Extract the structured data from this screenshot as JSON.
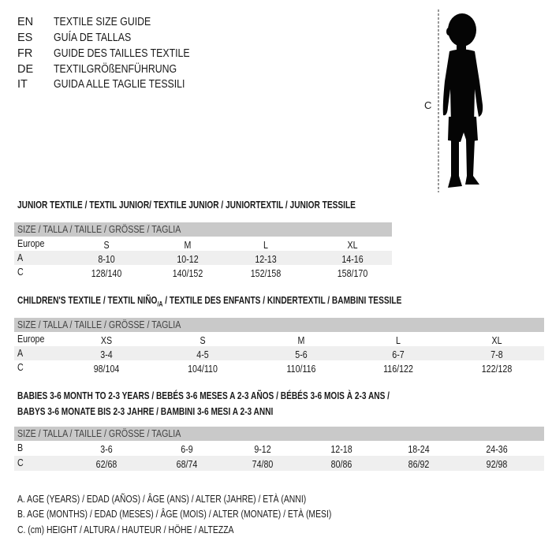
{
  "languages": [
    {
      "code": "EN",
      "name": "TEXTILE SIZE GUIDE"
    },
    {
      "code": "ES",
      "name": "GUÍA DE TALLAS"
    },
    {
      "code": "FR",
      "name": "GUIDE DES TAILLES TEXTILE"
    },
    {
      "code": "DE",
      "name": "TEXTILGRÖßENFÜHRUNG"
    },
    {
      "code": "IT",
      "name": "GUIDA ALLE TAGLIE TESSILI"
    }
  ],
  "figure": {
    "height_marker": "C",
    "icon": "child-silhouette"
  },
  "junior": {
    "title": "JUNIOR TEXTILE / TEXTIL JUNIOR/ TEXTILE JUNIOR / JUNIORTEXTIL / JUNIOR TESSILE",
    "header": "SIZE / TALLA / TAILLE / GRÖSSE / TAGLIA",
    "rows": [
      {
        "label": "Europe",
        "cells": [
          "S",
          "M",
          "L",
          "XL"
        ]
      },
      {
        "label": "A",
        "cells": [
          "8-10",
          "10-12",
          "12-13",
          "14-16"
        ]
      },
      {
        "label": "C",
        "cells": [
          "128/140",
          "140/152",
          "152/158",
          "158/170"
        ]
      }
    ]
  },
  "children": {
    "title_pre": "CHILDREN'S TEXTILE / TEXTIL NIÑO",
    "title_sub": "/A",
    "title_post": " / TEXTILE DES ENFANTS / KINDERTEXTIL / BAMBINI TESSILE",
    "header": "SIZE / TALLA / TAILLE / GRÖSSE / TAGLIA",
    "rows": [
      {
        "label": "Europe",
        "cells": [
          "XS",
          "S",
          "M",
          "L",
          "XL"
        ]
      },
      {
        "label": "A",
        "cells": [
          "3-4",
          "4-5",
          "5-6",
          "6-7",
          "7-8"
        ]
      },
      {
        "label": "C",
        "cells": [
          "98/104",
          "104/110",
          "110/116",
          "116/122",
          "122/128"
        ]
      }
    ]
  },
  "babies": {
    "title_line1": "BABIES 3-6 MONTH TO 2-3 YEARS / BEBÉS 3-6 MESES A 2-3 AÑOS / BÉBÉS 3-6 MOIS À 2-3 ANS /",
    "title_line2": "BABYS 3-6 MONATE BIS 2-3 JAHRE / BAMBINI 3-6 MESI A 2-3 ANNI",
    "header": "SIZE / TALLA / TAILLE / GRÖSSE / TAGLIA",
    "rows": [
      {
        "label": "B",
        "cells": [
          "3-6",
          "6-9",
          "9-12",
          "12-18",
          "18-24",
          "24-36"
        ]
      },
      {
        "label": "C",
        "cells": [
          "62/68",
          "68/74",
          "74/80",
          "80/86",
          "86/92",
          "92/98"
        ]
      }
    ]
  },
  "legend": [
    "A. AGE (YEARS) / EDAD (AÑOS) / ÂGE (ANS) / ALTER (JAHRE) / ETÀ (ANNI)",
    "B. AGE (MONTHS) / EDAD (MESES) / ÂGE (MOIS) / ALTER (MONATE) / ETÀ (MESI)",
    "C. (cm) HEIGHT / ALTURA / HAUTEUR / HÖHE / ALTEZZA"
  ]
}
